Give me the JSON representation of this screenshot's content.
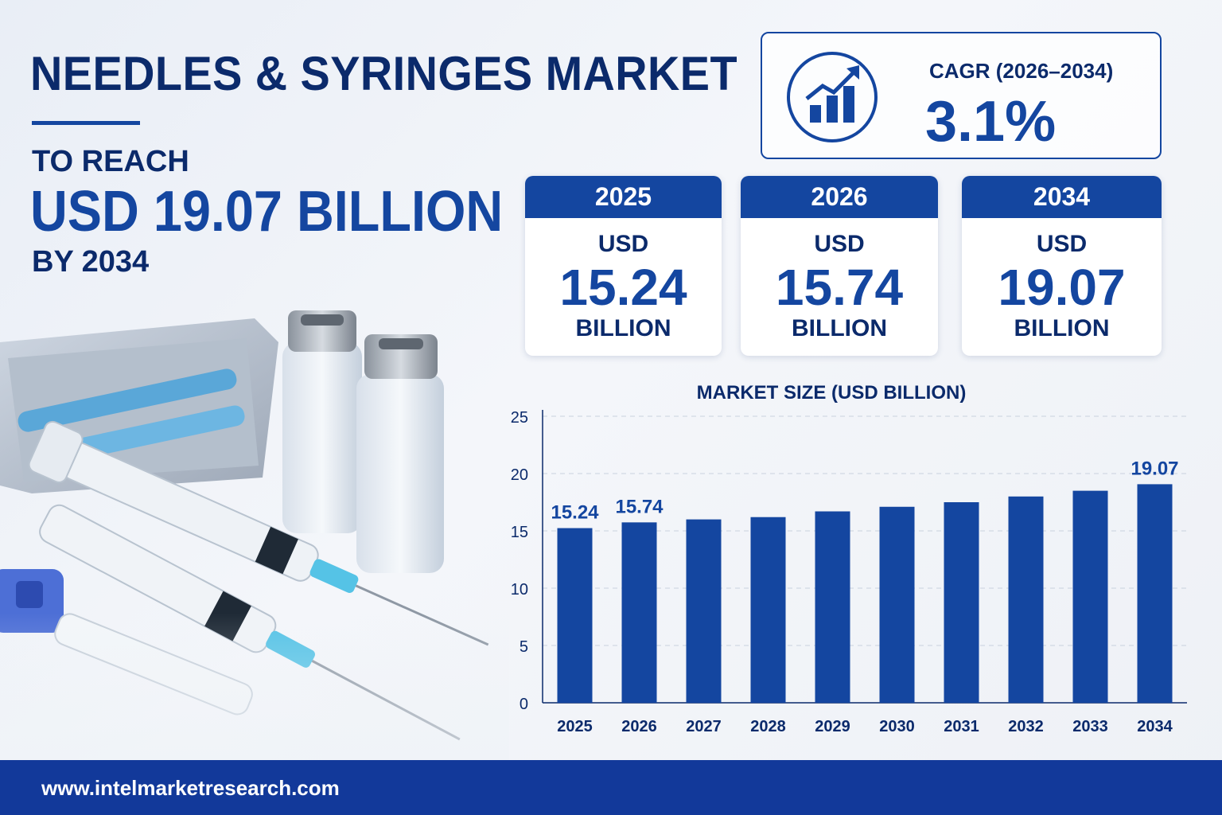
{
  "header": {
    "title": "NEEDLES & SYRINGES MARKET",
    "to_reach": "TO REACH",
    "headline": "USD 19.07 BILLION",
    "by_year": "BY 2034"
  },
  "cagr": {
    "label": "CAGR (2026–2034)",
    "value": "3.1%",
    "icon": "growth-chart-icon"
  },
  "cards": [
    {
      "year": "2025",
      "usd": "USD",
      "value": "15.24",
      "unit": "BILLION"
    },
    {
      "year": "2026",
      "usd": "USD",
      "value": "15.74",
      "unit": "BILLION"
    },
    {
      "year": "2034",
      "usd": "USD",
      "value": "19.07",
      "unit": "BILLION"
    }
  ],
  "footer": {
    "url": "www.intelmarketresearch.com"
  },
  "colors": {
    "primary": "#1446a0",
    "navy": "#0b2a6b",
    "footer": "#12399a"
  },
  "chart_data": {
    "type": "bar",
    "title": "MARKET SIZE (USD BILLION)",
    "categories": [
      "2025",
      "2026",
      "2027",
      "2028",
      "2029",
      "2030",
      "2031",
      "2032",
      "2033",
      "2034"
    ],
    "values": [
      15.24,
      15.74,
      16.0,
      16.2,
      16.7,
      17.1,
      17.5,
      18.0,
      18.5,
      19.07
    ],
    "data_labels": {
      "0": "15.24",
      "1": "15.74",
      "9": "19.07"
    },
    "yticks": [
      0,
      5,
      10,
      15,
      20,
      25
    ],
    "ylim": [
      0,
      25
    ],
    "grid": true,
    "xlabel": "",
    "ylabel": ""
  }
}
